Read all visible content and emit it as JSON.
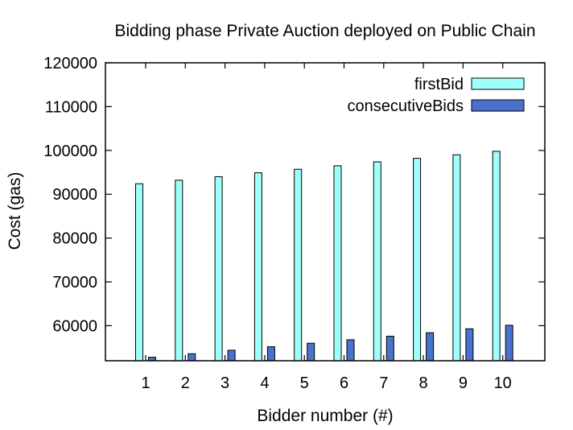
{
  "chart_data": {
    "type": "bar",
    "title": "Bidding phase Private Auction deployed on Public Chain",
    "xlabel": "Bidder number (#)",
    "ylabel": "Cost (gas)",
    "categories": [
      "1",
      "2",
      "3",
      "4",
      "5",
      "6",
      "7",
      "8",
      "9",
      "10"
    ],
    "ylim": [
      52000,
      120000
    ],
    "yticks": [
      60000,
      70000,
      80000,
      90000,
      100000,
      110000,
      120000
    ],
    "series": [
      {
        "name": "firstBid",
        "color": "#9ffffa",
        "values": [
          92400,
          93200,
          94000,
          94900,
          95700,
          96500,
          97400,
          98200,
          99000,
          99800
        ]
      },
      {
        "name": "consecutiveBids",
        "color": "#4a72cc",
        "values": [
          52800,
          53600,
          54400,
          55200,
          56000,
          56800,
          57600,
          58400,
          59300,
          60100
        ]
      }
    ],
    "legend": "top-right",
    "grid": false
  }
}
